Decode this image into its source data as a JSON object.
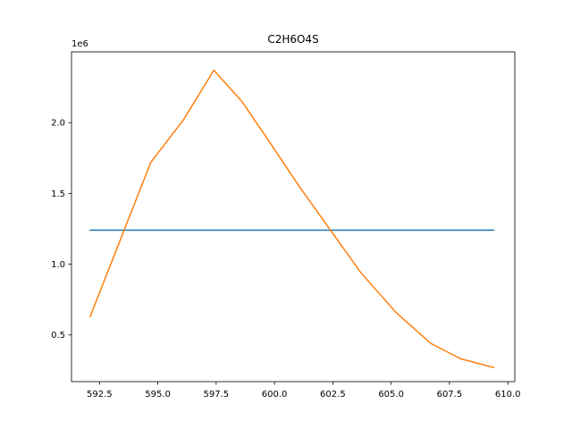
{
  "chart_data": {
    "type": "line",
    "title": "C2H6O4S",
    "xlabel": "",
    "ylabel": "",
    "y_offset_text": "1e6",
    "xlim": [
      591.3,
      610.3
    ],
    "ylim": [
      0.17,
      2.5
    ],
    "x_ticks": [
      592.5,
      595.0,
      597.5,
      600.0,
      602.5,
      605.0,
      607.5,
      610.0
    ],
    "x_tick_labels": [
      "592.5",
      "595.0",
      "597.5",
      "600.0",
      "602.5",
      "605.0",
      "607.5",
      "610.0"
    ],
    "y_ticks": [
      0.5,
      1.0,
      1.5,
      2.0
    ],
    "y_tick_labels": [
      "0.5",
      "1.0",
      "1.5",
      "2.0"
    ],
    "grid": false,
    "series": [
      {
        "color": "#1f77b4",
        "x": [
          592.1,
          609.4
        ],
        "y": [
          1.24,
          1.24
        ]
      },
      {
        "color": "#ff7f0e",
        "x": [
          592.1,
          594.7,
          596.1,
          597.4,
          598.6,
          599.8,
          601.1,
          602.4,
          603.7,
          605.2,
          606.7,
          608.0,
          609.4
        ],
        "y": [
          0.63,
          1.72,
          2.02,
          2.37,
          2.15,
          1.86,
          1.54,
          1.24,
          0.94,
          0.66,
          0.44,
          0.33,
          0.27
        ]
      }
    ]
  }
}
